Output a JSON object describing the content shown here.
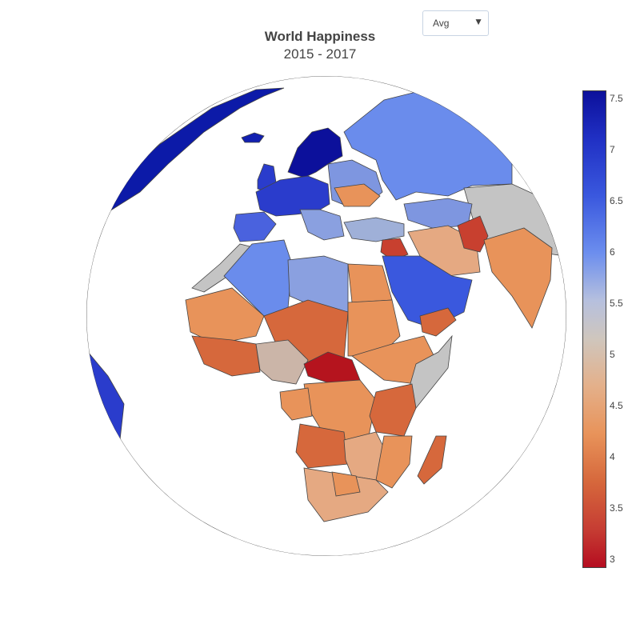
{
  "title": "World Happiness",
  "subtitle": "2015 - 2017",
  "dropdown": {
    "selected": "Avg"
  },
  "colorbar": {
    "ticks": [
      "7.5",
      "7",
      "6.5",
      "6",
      "5.5",
      "5",
      "4.5",
      "4",
      "3.5",
      "3"
    ],
    "range": [
      2.9,
      7.55
    ],
    "colorscale": "coolwarm-reversed"
  },
  "colors": {
    "very_high": "#0c109b",
    "high": "#2a3ccc",
    "upper_mid": "#6a8cec",
    "mid": "#c4c4c4",
    "lower_mid": "#e5a982",
    "low": "#e8935a",
    "very_low": "#c8402f",
    "lowest": "#b5141e"
  }
}
